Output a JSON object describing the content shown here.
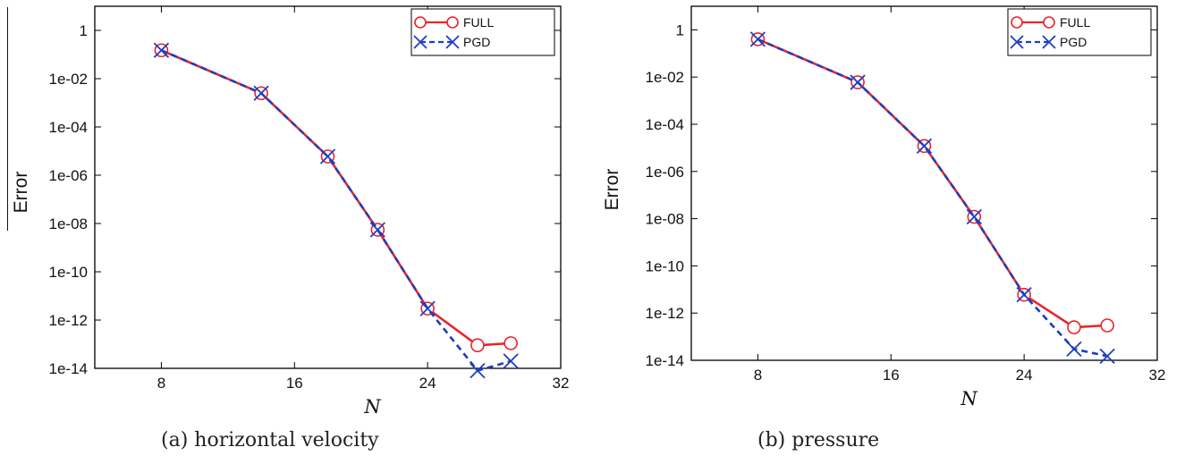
{
  "chart_data": [
    {
      "type": "line",
      "caption": "(a) horizontal velocity",
      "xlabel": "N",
      "ylabel": "Error",
      "xlim": [
        4,
        32
      ],
      "ylim": [
        1e-14,
        10
      ],
      "yscale": "log",
      "xticks": [
        8,
        16,
        24,
        32
      ],
      "yticks": [
        1,
        0.01,
        0.0001,
        1e-06,
        1e-08,
        1e-10,
        1e-12,
        1e-14
      ],
      "ytick_labels": [
        "1",
        "1e-02",
        "1e-04",
        "1e-06",
        "1e-08",
        "1e-10",
        "1e-12",
        "1e-14"
      ],
      "legend_position": "top-right",
      "series": [
        {
          "name": "FULL",
          "color": "#e8242a",
          "marker": "circle",
          "dash": "solid",
          "x": [
            8,
            14,
            18,
            21,
            24,
            27,
            29
          ],
          "y": [
            0.15,
            0.0025,
            6e-06,
            5.5e-09,
            3e-12,
            9e-14,
            1.1e-13
          ]
        },
        {
          "name": "PGD",
          "color": "#1f3dbf",
          "marker": "x",
          "dash": "dashed",
          "x": [
            8,
            14,
            18,
            21,
            24,
            27,
            29
          ],
          "y": [
            0.15,
            0.0025,
            6e-06,
            5.5e-09,
            3e-12,
            8e-15,
            2e-14
          ]
        }
      ]
    },
    {
      "type": "line",
      "caption": "(b) pressure",
      "xlabel": "N",
      "ylabel": "Error",
      "xlim": [
        4,
        32
      ],
      "ylim": [
        1e-14,
        10
      ],
      "yscale": "log",
      "xticks": [
        8,
        16,
        24,
        32
      ],
      "yticks": [
        1,
        0.01,
        0.0001,
        1e-06,
        1e-08,
        1e-10,
        1e-12,
        1e-14
      ],
      "ytick_labels": [
        "1",
        "1e-02",
        "1e-04",
        "1e-06",
        "1e-08",
        "1e-10",
        "1e-12",
        "1e-14"
      ],
      "legend_position": "top-right",
      "series": [
        {
          "name": "FULL",
          "color": "#e8242a",
          "marker": "circle",
          "dash": "solid",
          "x": [
            8,
            14,
            18,
            21,
            24,
            27,
            29
          ],
          "y": [
            0.4,
            0.006,
            1.2e-05,
            1.2e-08,
            6e-12,
            2.5e-13,
            3e-13
          ]
        },
        {
          "name": "PGD",
          "color": "#1f3dbf",
          "marker": "x",
          "dash": "dashed",
          "x": [
            8,
            14,
            18,
            21,
            24,
            27,
            29
          ],
          "y": [
            0.4,
            0.006,
            1.2e-05,
            1.2e-08,
            6e-12,
            3e-14,
            1.5e-14
          ]
        }
      ]
    }
  ]
}
